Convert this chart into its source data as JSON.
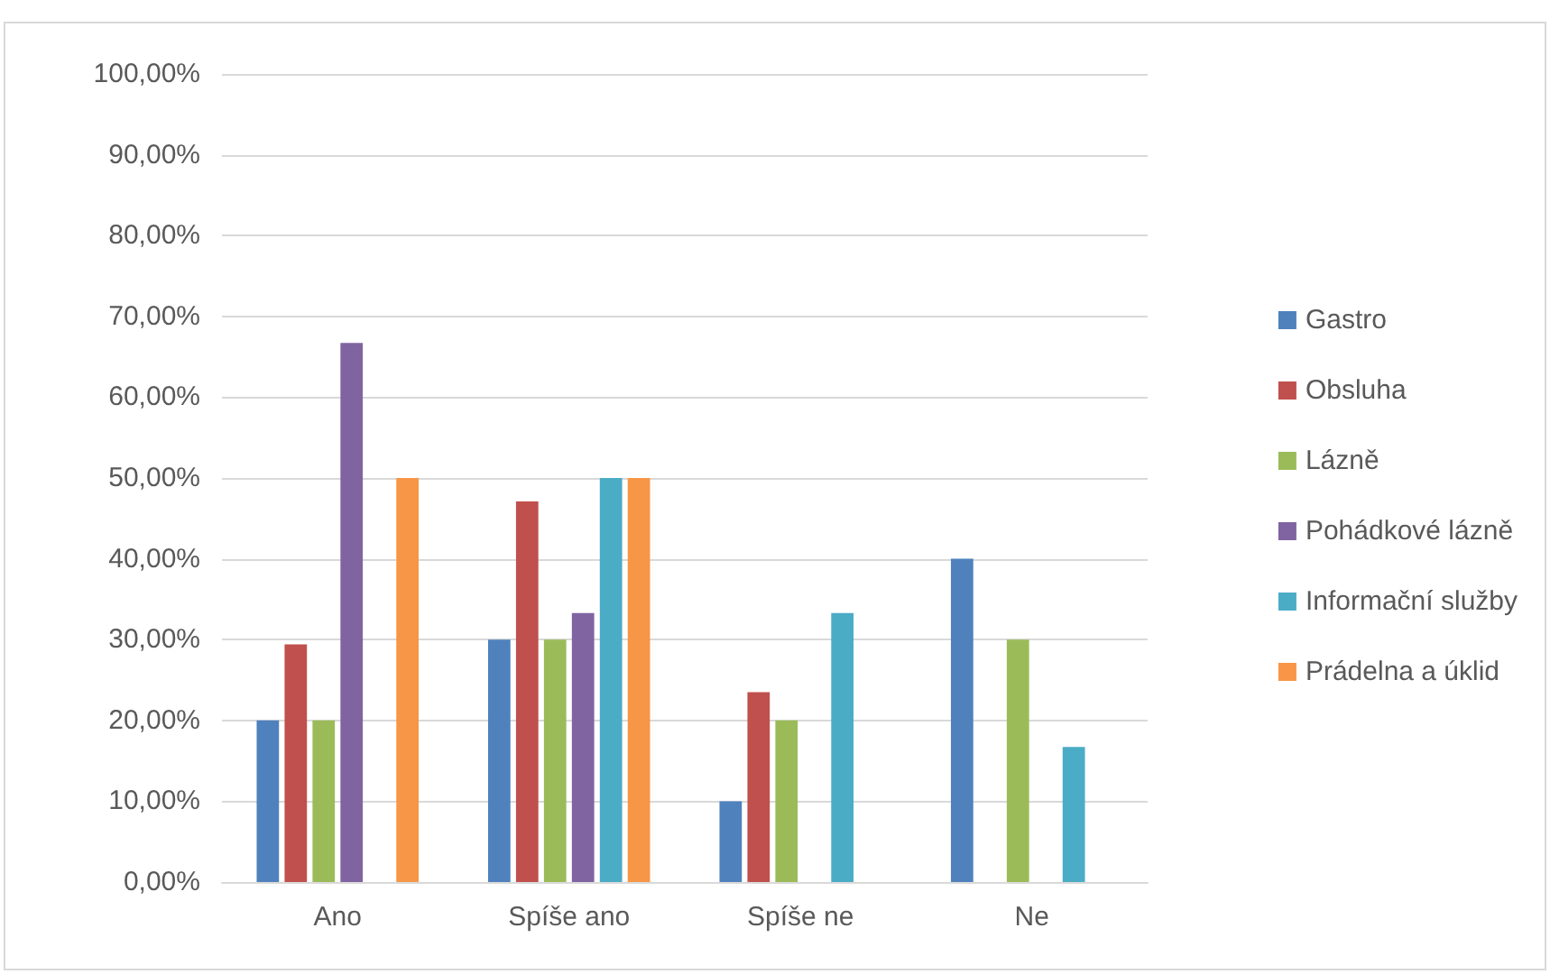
{
  "chart_data": {
    "type": "bar",
    "categories": [
      "Ano",
      "Spíše ano",
      "Spíše ne",
      "Ne"
    ],
    "series": [
      {
        "name": "Gastro",
        "color": "#4f81bd",
        "values": [
          20,
          30,
          10,
          40
        ]
      },
      {
        "name": "Obsluha",
        "color": "#c0504d",
        "values": [
          29.4,
          47.1,
          23.5,
          0
        ]
      },
      {
        "name": "Lázně",
        "color": "#9bbb59",
        "values": [
          20,
          30,
          20,
          30
        ]
      },
      {
        "name": "Pohádkové lázně",
        "color": "#8064a2",
        "values": [
          66.7,
          33.3,
          0,
          0
        ]
      },
      {
        "name": "Informační služby",
        "color": "#4bacc6",
        "values": [
          0,
          50,
          33.3,
          16.7
        ]
      },
      {
        "name": "Prádelna a úklid",
        "color": "#f79646",
        "values": [
          50,
          50,
          0,
          0
        ]
      }
    ],
    "ylim": [
      0,
      100
    ],
    "yticks": [
      {
        "value": 0,
        "label": "0,00%"
      },
      {
        "value": 10,
        "label": "10,00%"
      },
      {
        "value": 20,
        "label": "20,00%"
      },
      {
        "value": 30,
        "label": "30,00%"
      },
      {
        "value": 40,
        "label": "40,00%"
      },
      {
        "value": 50,
        "label": "50,00%"
      },
      {
        "value": 60,
        "label": "60,00%"
      },
      {
        "value": 70,
        "label": "70,00%"
      },
      {
        "value": 80,
        "label": "80,00%"
      },
      {
        "value": 90,
        "label": "90,00%"
      },
      {
        "value": 100,
        "label": "100,00%"
      }
    ],
    "grid": "y",
    "legend": "right"
  }
}
